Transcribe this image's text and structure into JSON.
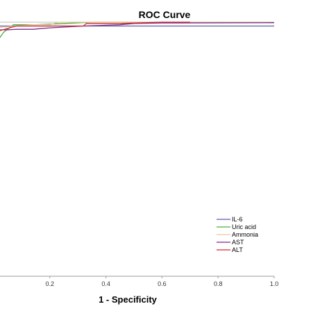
{
  "chart_data": {
    "type": "line",
    "title": "ROC Curve",
    "xlabel": "1 - Specificity",
    "ylabel": "",
    "xlim": [
      0,
      1
    ],
    "ylim": [
      0,
      1
    ],
    "x_ticks": [
      "0.2",
      "0.4",
      "0.6",
      "0.8",
      "1.0"
    ],
    "grid": false,
    "legend_position": "bottom-right",
    "series": [
      {
        "name": "IL-6",
        "color": "#5b5ba8",
        "points": [
          [
            0,
            0.985
          ],
          [
            0.2,
            0.985
          ],
          [
            0.4,
            0.985
          ],
          [
            1.0,
            0.985
          ]
        ]
      },
      {
        "name": "Uric acid",
        "color": "#46b03c",
        "points": [
          [
            0,
            0.905
          ],
          [
            0.035,
            0.96
          ],
          [
            0.07,
            0.99
          ],
          [
            0.15,
            0.99
          ],
          [
            0.35,
            1.0
          ],
          [
            0.38,
            1.0
          ],
          [
            1.0,
            1.0
          ]
        ]
      },
      {
        "name": "Ammonia",
        "color": "#e8c69a",
        "points": [
          [
            0,
            0.978
          ],
          [
            0.14,
            0.99
          ],
          [
            0.2,
            0.99
          ],
          [
            0.23,
            1.0
          ],
          [
            1.0,
            1.0
          ]
        ]
      },
      {
        "name": "AST",
        "color": "#7a2a8a",
        "points": [
          [
            0,
            0.935
          ],
          [
            0.015,
            0.97
          ],
          [
            0.05,
            0.97
          ],
          [
            0.08,
            0.972
          ],
          [
            0.14,
            0.972
          ],
          [
            0.2,
            0.978
          ],
          [
            0.32,
            0.985
          ],
          [
            0.4,
            0.988
          ],
          [
            0.45,
            0.99
          ],
          [
            0.5,
            0.995
          ],
          [
            0.6,
            0.997
          ],
          [
            1.0,
            0.998
          ]
        ]
      },
      {
        "name": "ALT",
        "color": "#d6282d",
        "points": [
          [
            0,
            0.96
          ],
          [
            0.08,
            0.985
          ],
          [
            0.32,
            0.985
          ],
          [
            0.33,
            0.995
          ],
          [
            0.45,
            0.995
          ],
          [
            0.6,
            1.0
          ],
          [
            0.7,
            1.0
          ]
        ]
      }
    ]
  }
}
